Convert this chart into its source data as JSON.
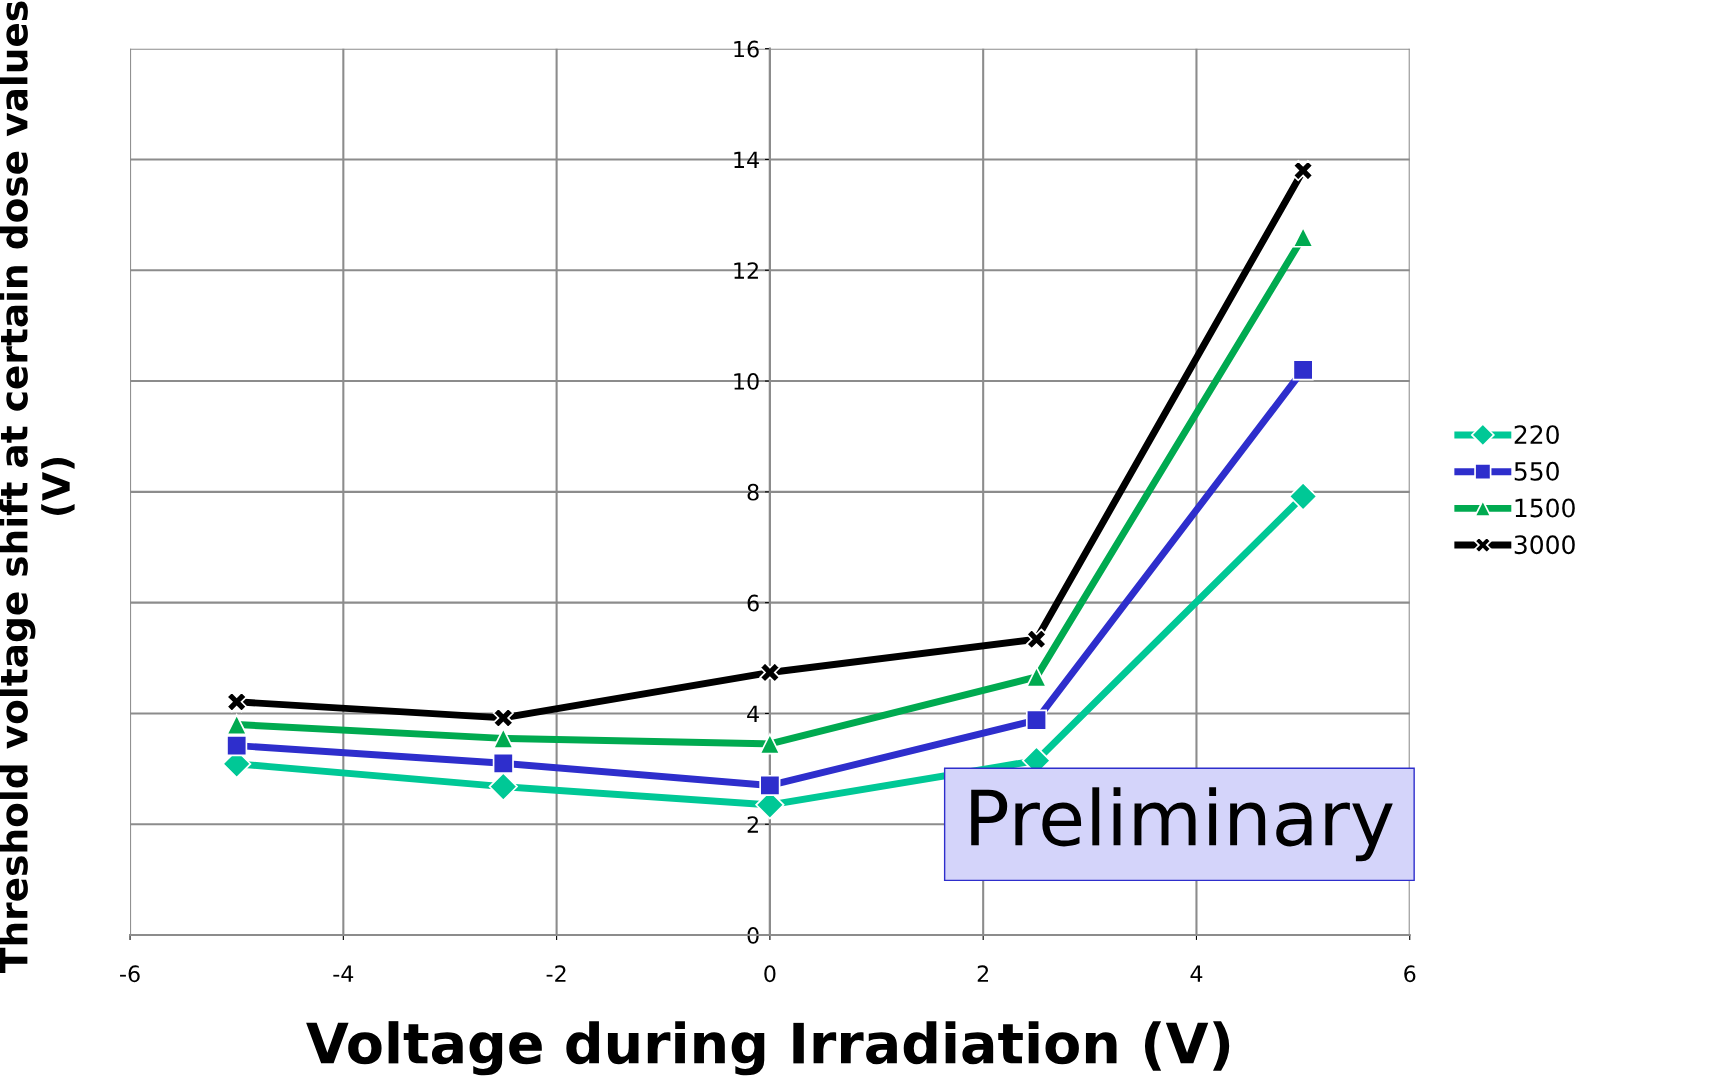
{
  "chart_data": {
    "type": "line",
    "xlabel": "Voltage during Irradiation (V)",
    "ylabel": "Threshold voltage shift at certain dose values\n(V)",
    "x": [
      -5,
      -2.5,
      0,
      2.5,
      5
    ],
    "series": [
      {
        "name": "220",
        "color": "#00c896",
        "marker": "diamond",
        "values": [
          3.09,
          2.68,
          2.35,
          3.15,
          7.92
        ]
      },
      {
        "name": "550",
        "color": "#2e2ecc",
        "marker": "square",
        "values": [
          3.42,
          3.1,
          2.7,
          3.88,
          10.2
        ]
      },
      {
        "name": "1500",
        "color": "#00aa50",
        "marker": "triangle",
        "values": [
          3.8,
          3.55,
          3.45,
          4.66,
          12.6
        ]
      },
      {
        "name": "3000",
        "color": "#000000",
        "marker": "cross",
        "values": [
          4.21,
          3.92,
          4.74,
          5.34,
          13.8
        ]
      }
    ],
    "xlim": [
      -6,
      6
    ],
    "xticks": [
      -6,
      -4,
      -2,
      0,
      2,
      4,
      6
    ],
    "ylim": [
      0,
      16
    ],
    "yticks": [
      0,
      2,
      4,
      6,
      8,
      10,
      12,
      14,
      16
    ],
    "grid": true,
    "legend": "right",
    "line_style": "solid",
    "annotations": [
      "Preliminary"
    ]
  }
}
